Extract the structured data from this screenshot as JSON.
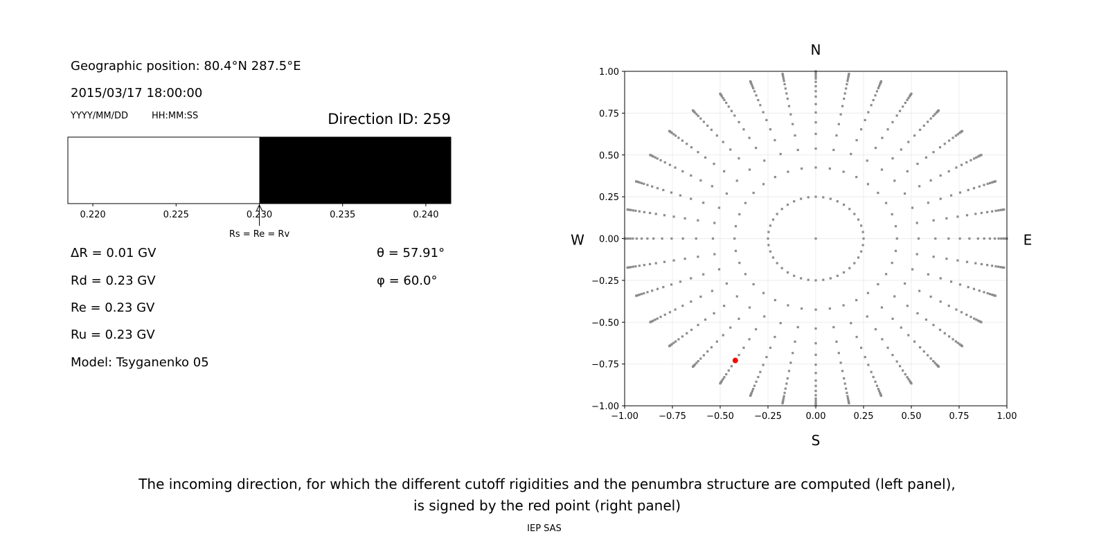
{
  "left_panel": {
    "geo_position": "Geographic position: 80.4°N 287.5°E",
    "datetime": "2015/03/17 18:00:00",
    "date_format": "YYYY/MM/DD",
    "time_format": "HH:MM:SS",
    "direction_id": "Direction ID: 259",
    "delta_r": "ΔR = 0.01 GV",
    "rd": "Rd = 0.23 GV",
    "re": "Re = 0.23 GV",
    "ru": "Ru = 0.23 GV",
    "model": "Model: Tsyganenko 05",
    "theta": "θ = 57.91°",
    "phi": "φ = 60.0°"
  },
  "chart_data": [
    {
      "type": "bar",
      "description_role": "penumbra structure",
      "xlim": [
        0.2185,
        0.2415
      ],
      "xticks": [
        0.22,
        0.225,
        0.23,
        0.235,
        0.24
      ],
      "xtick_labels": [
        "0.220",
        "0.225",
        "0.230",
        "0.235",
        "0.240"
      ],
      "segments": [
        {
          "from": 0.2185,
          "to": 0.23,
          "state": "forbidden",
          "color": "#ffffff"
        },
        {
          "from": 0.23,
          "to": 0.2415,
          "state": "allowed",
          "color": "#000000"
        }
      ],
      "annotation": {
        "x": 0.23,
        "text": "Rs = Re = Rv"
      }
    },
    {
      "type": "scatter",
      "xlim": [
        -1.0,
        1.0
      ],
      "ylim": [
        -1.0,
        1.0
      ],
      "xticks": [
        "−1.00",
        "−0.75",
        "−0.50",
        "−0.25",
        "0.00",
        "0.25",
        "0.50",
        "0.75",
        "1.00"
      ],
      "yticks": [
        "−1.00",
        "−0.75",
        "−0.50",
        "−0.25",
        "0.00",
        "0.25",
        "0.50",
        "0.75",
        "1.00"
      ],
      "tick_values": [
        -1,
        -0.75,
        -0.5,
        -0.25,
        0,
        0.25,
        0.5,
        0.75,
        1
      ],
      "grid": true,
      "compass": {
        "n": "N",
        "s": "S",
        "e": "E",
        "w": "W"
      },
      "directions": {
        "color": "#8c8c8c",
        "center": [
          0,
          0
        ],
        "inner_ring": {
          "radius": 0.25,
          "count": 40
        },
        "spokes": {
          "azimuth_step_deg": 10,
          "radii": [
            0.25,
            0.425,
            0.538,
            0.626,
            0.695,
            0.754,
            0.804,
            0.849,
            0.881,
            0.911,
            0.937,
            0.957,
            0.97,
            0.982,
            0.99,
            0.996,
            1.0
          ]
        }
      },
      "selected": {
        "x": -0.421,
        "y": -0.729,
        "color": "#ff0000"
      }
    }
  ],
  "caption": {
    "line1": "The incoming direction, for which the different cutoff rigidities and the penumbra structure are computed (left panel),",
    "line2": "is signed by the red point (right panel)"
  },
  "footer": "IEP SAS"
}
